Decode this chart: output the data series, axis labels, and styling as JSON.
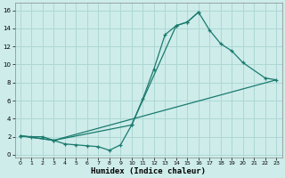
{
  "xlabel": "Humidex (Indice chaleur)",
  "background_color": "#cdecea",
  "grid_color": "#aed8d4",
  "line_color": "#1a7a6e",
  "xlim": [
    -0.5,
    23.5
  ],
  "ylim": [
    -0.3,
    16.8
  ],
  "xticks": [
    0,
    1,
    2,
    3,
    4,
    5,
    6,
    7,
    8,
    9,
    10,
    11,
    12,
    13,
    14,
    15,
    16,
    17,
    18,
    19,
    20,
    21,
    22,
    23
  ],
  "yticks": [
    0,
    2,
    4,
    6,
    8,
    10,
    12,
    14,
    16
  ],
  "line1_x": [
    0,
    1,
    2,
    3,
    4,
    5,
    6,
    7,
    8,
    9,
    10,
    11,
    12,
    13,
    14,
    15,
    16,
    17,
    18,
    19,
    20
  ],
  "line1_y": [
    2.1,
    2.0,
    2.0,
    1.6,
    1.2,
    1.1,
    1.0,
    0.9,
    0.5,
    1.1,
    3.3,
    6.2,
    9.5,
    13.3,
    14.3,
    14.7,
    15.8,
    null,
    null,
    null,
    null
  ],
  "line2_x": [
    0,
    3,
    10,
    14,
    15,
    16,
    17,
    18,
    19,
    20,
    22,
    23
  ],
  "line2_y": [
    2.1,
    1.6,
    3.3,
    14.3,
    14.7,
    15.8,
    13.8,
    12.3,
    11.5,
    10.2,
    8.5,
    8.3
  ],
  "line3_x": [
    0,
    3,
    23
  ],
  "line3_y": [
    2.1,
    1.6,
    8.3
  ]
}
